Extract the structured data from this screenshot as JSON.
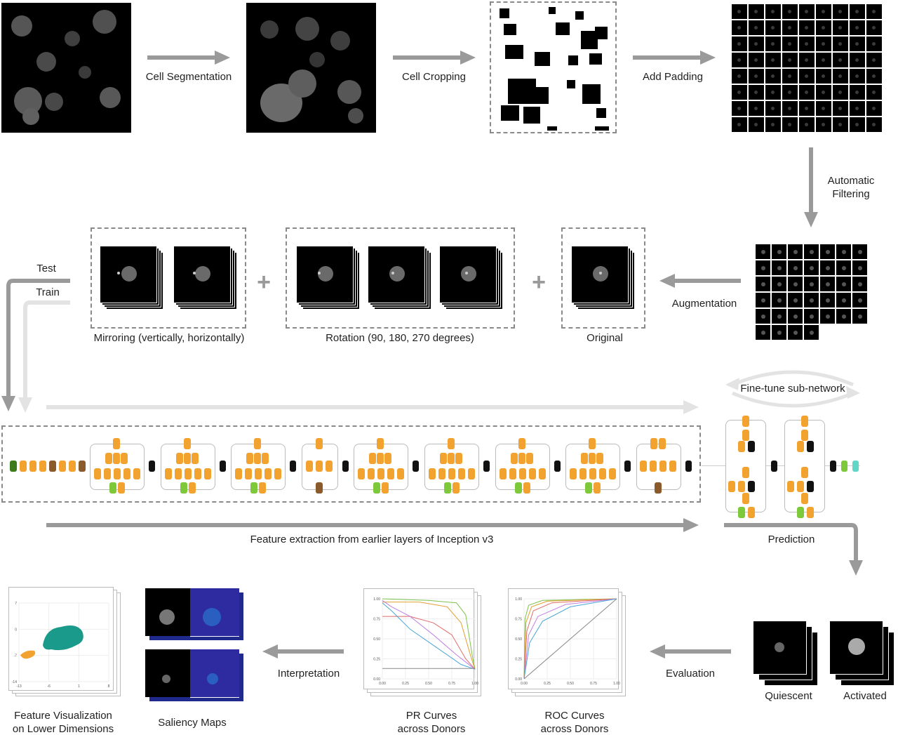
{
  "pipeline": {
    "cell_segmentation": "Cell Segmentation",
    "cell_cropping": "Cell Cropping",
    "add_padding": "Add Padding",
    "automatic_filtering_line1": "Automatic",
    "automatic_filtering_line2": "Filtering",
    "augmentation": "Augmentation"
  },
  "augment": {
    "mirroring": "Mirroring (vertically, horizontally)",
    "rotation": "Rotation (90, 180, 270 degrees)",
    "original": "Original",
    "plus": "+"
  },
  "split": {
    "test": "Test",
    "train": "Train"
  },
  "network": {
    "fine_tune": "Fine-tune sub-network",
    "feature_extraction": "Feature extraction from earlier layers of Inception v3",
    "prediction": "Prediction"
  },
  "results": {
    "quiescent": "Quiescent",
    "activated": "Activated",
    "evaluation": "Evaluation",
    "interpretation": "Interpretation",
    "roc_line1": "ROC Curves",
    "roc_line2": "across Donors",
    "pr_line1": "PR Curves",
    "pr_line2": "across Donors",
    "saliency": "Saliency Maps",
    "featvis_line1": "Feature Visualization",
    "featvis_line2": "on Lower Dimensions"
  },
  "pr_axes": {
    "y_ticks": [
      "1.00",
      "0.75",
      "0.50",
      "0.25",
      "0.00"
    ],
    "x_ticks": [
      "0.00",
      "0.25",
      "0.50",
      "0.75",
      "1.00"
    ]
  },
  "roc_axes": {
    "y_ticks": [
      "1.00",
      "0.75",
      "0.50",
      "0.25",
      "0.00"
    ],
    "x_ticks": [
      "0.00",
      "0.25",
      "0.50",
      "0.75",
      "1.00"
    ]
  },
  "umap_axes": {
    "y_ticks": [
      "7",
      "0",
      "-7",
      "-14"
    ],
    "x_ticks": [
      "-13",
      "-6",
      "1",
      "8"
    ]
  },
  "colors": {
    "arrow_dark": "#9a9a9a",
    "arrow_light": "#e3e3e3",
    "orange": "#f2a32f",
    "black": "#111111",
    "brown": "#8b5a2b",
    "green": "#7dc93a",
    "dark_green": "#3e7a1e",
    "cyan": "#5fd6c6",
    "teal": "#1a9a8a"
  }
}
